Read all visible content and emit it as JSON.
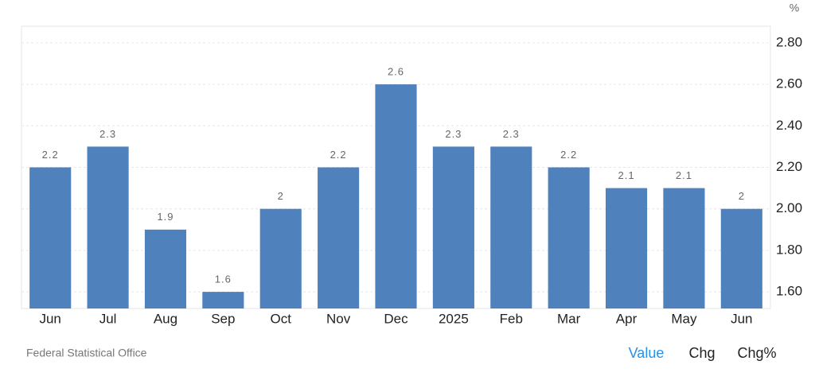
{
  "chart_data": {
    "type": "bar",
    "unit": "%",
    "categories": [
      "Jun",
      "Jul",
      "Aug",
      "Sep",
      "Oct",
      "Nov",
      "Dec",
      "2025",
      "Feb",
      "Mar",
      "Apr",
      "May",
      "Jun"
    ],
    "values": [
      2.2,
      2.3,
      1.9,
      1.6,
      2,
      2.2,
      2.6,
      2.3,
      2.3,
      2.2,
      2.1,
      2.1,
      2
    ],
    "color": "#4f81bd",
    "ylim": [
      1.52,
      2.88
    ],
    "yticks": [
      {
        "value": 1.6,
        "label": "1.60"
      },
      {
        "value": 1.8,
        "label": "1.80"
      },
      {
        "value": 2.0,
        "label": "2.00"
      },
      {
        "value": 2.2,
        "label": "2.20"
      },
      {
        "value": 2.4,
        "label": "2.40"
      },
      {
        "value": 2.6,
        "label": "2.60"
      },
      {
        "value": 2.8,
        "label": "2.80"
      }
    ],
    "grid": true,
    "source": "Federal Statistical Office"
  },
  "controls": [
    "Value",
    "Chg",
    "Chg%"
  ]
}
